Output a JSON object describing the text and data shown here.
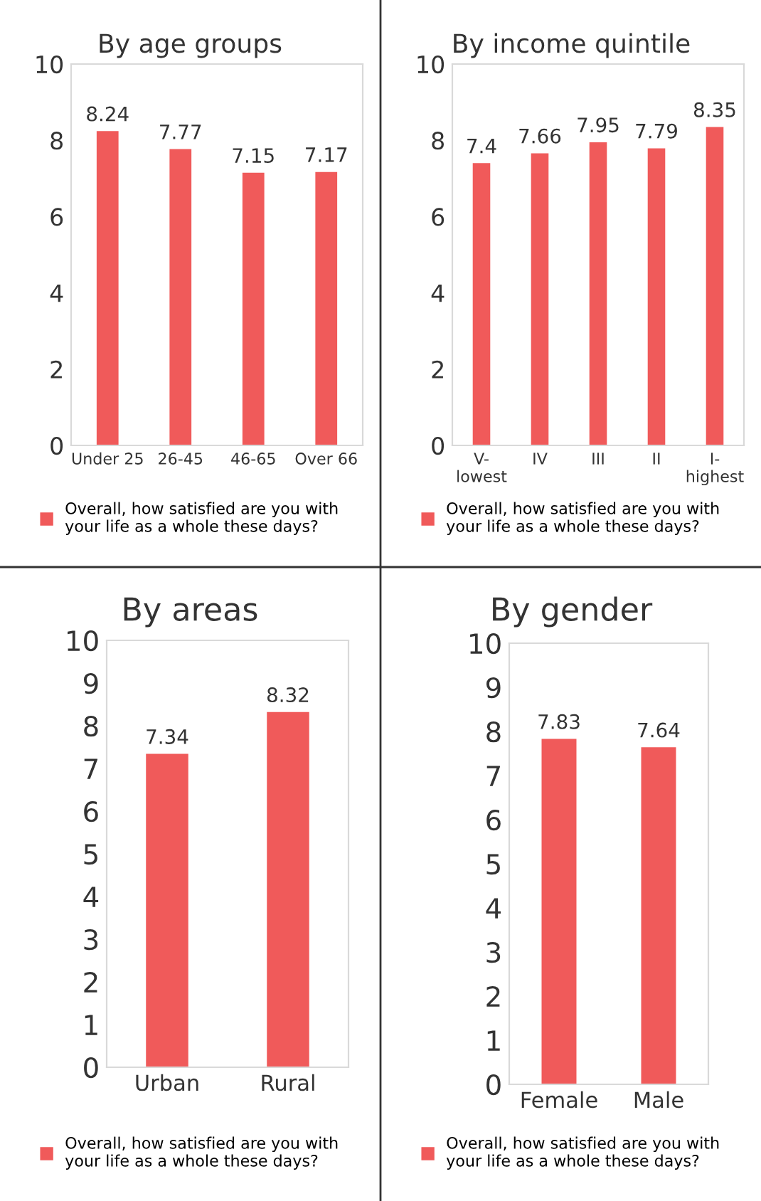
{
  "chart_data": [
    {
      "type": "bar",
      "title": "By age groups",
      "categories": [
        "Under 25",
        "26-45",
        "46-65",
        "Over 66"
      ],
      "series": [
        {
          "name": "Overall, how satisfied are you with your life as a whole these days?",
          "color": "#f05a5a",
          "values": [
            8.24,
            7.77,
            7.15,
            7.17
          ]
        }
      ],
      "ylim": [
        0,
        10
      ],
      "yticks": [
        0,
        2,
        4,
        6,
        8,
        10
      ],
      "data_labels": true,
      "legend": "bottom",
      "grid": false
    },
    {
      "type": "bar",
      "title": "By income quintile",
      "categories": [
        "V-\nlowest",
        "IV",
        "III",
        "II",
        "I-\nhighest"
      ],
      "series": [
        {
          "name": "Overall, how satisfied are you with your life as a whole these days?",
          "color": "#f05a5a",
          "values": [
            7.4,
            7.66,
            7.95,
            7.79,
            8.35
          ]
        }
      ],
      "ylim": [
        0,
        10
      ],
      "yticks": [
        0,
        2,
        4,
        6,
        8,
        10
      ],
      "data_labels": true,
      "legend": "bottom",
      "grid": false
    },
    {
      "type": "bar",
      "title": "By areas",
      "categories": [
        "Urban",
        "Rural"
      ],
      "series": [
        {
          "name": "Overall, how satisfied are you with your life as a whole these days?",
          "color": "#f05a5a",
          "values": [
            7.34,
            8.32
          ]
        }
      ],
      "ylim": [
        0,
        10
      ],
      "yticks": [
        0,
        1,
        2,
        3,
        4,
        5,
        6,
        7,
        8,
        9,
        10
      ],
      "data_labels": true,
      "legend": "bottom",
      "grid": false
    },
    {
      "type": "bar",
      "title": "By gender",
      "categories": [
        "Female",
        "Male"
      ],
      "series": [
        {
          "name": "Overall, how satisfied are you with your life as a whole these days?",
          "color": "#f05a5a",
          "values": [
            7.83,
            7.64
          ]
        }
      ],
      "ylim": [
        0,
        10
      ],
      "yticks": [
        0,
        1,
        2,
        3,
        4,
        5,
        6,
        7,
        8,
        9,
        10
      ],
      "data_labels": true,
      "legend": "bottom",
      "grid": false
    }
  ]
}
